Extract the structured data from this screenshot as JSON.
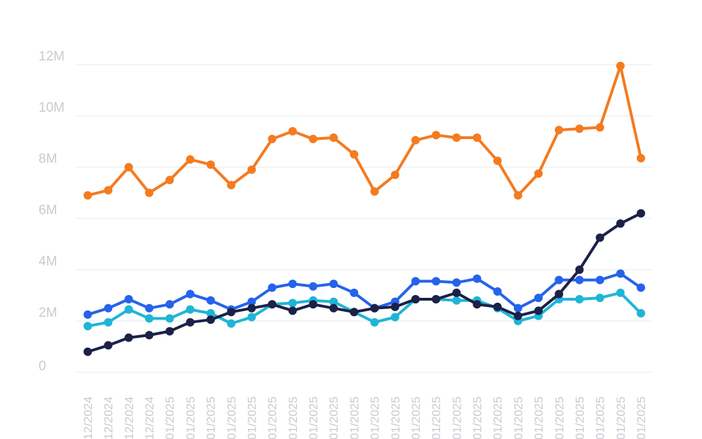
{
  "chart_data": {
    "type": "line",
    "title": "",
    "xlabel": "",
    "ylabel": "",
    "ylim": [
      0,
      12000000
    ],
    "y_ticks": [
      {
        "value": 0,
        "label": "0"
      },
      {
        "value": 2000000,
        "label": "2M"
      },
      {
        "value": 4000000,
        "label": "4M"
      },
      {
        "value": 6000000,
        "label": "6M"
      },
      {
        "value": 8000000,
        "label": "8M"
      },
      {
        "value": 10000000,
        "label": "10M"
      },
      {
        "value": 12000000,
        "label": "12M"
      }
    ],
    "grid": true,
    "legend": "none",
    "categories": [
      "12/2024",
      "12/2024",
      "12/2024",
      "12/2024",
      "01/2025",
      "01/2025",
      "01/2025",
      "01/2025",
      "01/2025",
      "01/2025",
      "01/2025",
      "01/2025",
      "01/2025",
      "01/2025",
      "01/2025",
      "01/2025",
      "01/2025",
      "01/2025",
      "01/2025",
      "01/2025",
      "01/2025",
      "01/2025",
      "01/2025",
      "01/2025",
      "01/2025",
      "01/2025",
      "01/2025",
      "01/2025"
    ],
    "series": [
      {
        "color": "#f47b20",
        "values": [
          6900000,
          7100000,
          8000000,
          7000000,
          7500000,
          8300000,
          8100000,
          7300000,
          7900000,
          9100000,
          9400000,
          9100000,
          9150000,
          8500000,
          7050000,
          7700000,
          9050000,
          9250000,
          9150000,
          9150000,
          8250000,
          6900000,
          7750000,
          9450000,
          9500000,
          9550000,
          11950000,
          8350000
        ]
      },
      {
        "color": "#2563eb",
        "values": [
          2250000,
          2500000,
          2850000,
          2500000,
          2650000,
          3050000,
          2800000,
          2450000,
          2750000,
          3300000,
          3450000,
          3350000,
          3450000,
          3100000,
          2500000,
          2750000,
          3550000,
          3550000,
          3500000,
          3650000,
          3150000,
          2500000,
          2900000,
          3600000,
          3600000,
          3600000,
          3850000,
          3300000
        ]
      },
      {
        "color": "#1fb5d6",
        "values": [
          1800000,
          1950000,
          2450000,
          2100000,
          2100000,
          2450000,
          2300000,
          1900000,
          2150000,
          2650000,
          2700000,
          2800000,
          2750000,
          2350000,
          1950000,
          2150000,
          2850000,
          2850000,
          2800000,
          2800000,
          2500000,
          2000000,
          2200000,
          2850000,
          2850000,
          2900000,
          3100000,
          2300000
        ]
      },
      {
        "color": "#1c2148",
        "values": [
          800000,
          1050000,
          1350000,
          1450000,
          1600000,
          1950000,
          2050000,
          2350000,
          2500000,
          2650000,
          2400000,
          2650000,
          2500000,
          2350000,
          2500000,
          2550000,
          2850000,
          2850000,
          3100000,
          2650000,
          2550000,
          2200000,
          2400000,
          3050000,
          4000000,
          5250000,
          5800000,
          6200000
        ]
      }
    ]
  }
}
